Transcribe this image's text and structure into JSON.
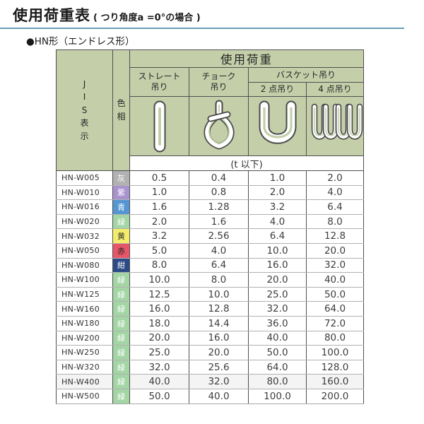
{
  "page": {
    "title": "使用荷重表",
    "title_note": "( つり角度a =0°の場合 )",
    "subtitle": "●HN形（エンドレス形）",
    "accent_line_color": "#6b9fb5"
  },
  "table": {
    "header": {
      "load_title": "使用荷重",
      "jis_label": "J\nI\nS\n表\n示",
      "color_label": "色\n相",
      "straight": "ストレート\n吊り",
      "choke": "チョーク\n吊り",
      "basket": "バスケット吊り",
      "basket2": "2 点吊り",
      "basket4": "4 点吊り",
      "unit_note": "(t 以下)"
    },
    "icons": {
      "straight": "straight-sling-icon",
      "choke": "choke-sling-icon",
      "basket2": "basket-2point-icon",
      "basket4": "basket-4point-icon"
    },
    "colors": {
      "header_bg": "#c4cfaa",
      "border_dark": "#4f4f4f",
      "border_light": "#b1b1b1"
    },
    "rows": [
      {
        "jis": "HN-W005",
        "color_name": "灰",
        "color_hex": "#b2b2b2",
        "color_text": "#ffffff",
        "values": [
          "0.5",
          "0.4",
          "1.0",
          "2.0"
        ]
      },
      {
        "jis": "HN-W010",
        "color_name": "紫",
        "color_hex": "#aa92ce",
        "color_text": "#ffffff",
        "values": [
          "1.0",
          "0.8",
          "2.0",
          "4.0"
        ]
      },
      {
        "jis": "HN-W016",
        "color_name": "青",
        "color_hex": "#5495d2",
        "color_text": "#ffffff",
        "values": [
          "1.6",
          "1.28",
          "3.2",
          "6.4"
        ]
      },
      {
        "jis": "HN-W020",
        "color_name": "緑",
        "color_hex": "#a3d5a5",
        "color_text": "#ffffff",
        "values": [
          "2.0",
          "1.6",
          "4.0",
          "8.0"
        ]
      },
      {
        "jis": "HN-W032",
        "color_name": "黄",
        "color_hex": "#f4ed6b",
        "color_text": "#333333",
        "values": [
          "3.2",
          "2.56",
          "6.4",
          "12.8"
        ]
      },
      {
        "jis": "HN-W050",
        "color_name": "赤",
        "color_hex": "#e65668",
        "color_text": "#222222",
        "values": [
          "5.0",
          "4.0",
          "10.0",
          "20.0"
        ]
      },
      {
        "jis": "HN-W080",
        "color_name": "紺",
        "color_hex": "#2c4a85",
        "color_text": "#ffffff",
        "values": [
          "8.0",
          "6.4",
          "16.0",
          "32.0"
        ]
      },
      {
        "jis": "HN-W100",
        "color_name": "緑",
        "color_hex": "#a3d5a5",
        "color_text": "#ffffff",
        "values": [
          "10.0",
          "8.0",
          "20.0",
          "40.0"
        ]
      },
      {
        "jis": "HN-W125",
        "color_name": "緑",
        "color_hex": "#a3d5a5",
        "color_text": "#ffffff",
        "values": [
          "12.5",
          "10.0",
          "25.0",
          "50.0"
        ]
      },
      {
        "jis": "HN-W160",
        "color_name": "緑",
        "color_hex": "#a3d5a5",
        "color_text": "#ffffff",
        "values": [
          "16.0",
          "12.8",
          "32.0",
          "64.0"
        ]
      },
      {
        "jis": "HN-W180",
        "color_name": "緑",
        "color_hex": "#a3d5a5",
        "color_text": "#ffffff",
        "values": [
          "18.0",
          "14.4",
          "36.0",
          "72.0"
        ]
      },
      {
        "jis": "HN-W200",
        "color_name": "緑",
        "color_hex": "#a3d5a5",
        "color_text": "#ffffff",
        "values": [
          "20.0",
          "16.0",
          "40.0",
          "80.0"
        ]
      },
      {
        "jis": "HN-W250",
        "color_name": "緑",
        "color_hex": "#a3d5a5",
        "color_text": "#ffffff",
        "values": [
          "25.0",
          "20.0",
          "50.0",
          "100.0"
        ]
      },
      {
        "jis": "HN-W320",
        "color_name": "緑",
        "color_hex": "#a3d5a5",
        "color_text": "#ffffff",
        "values": [
          "32.0",
          "25.6",
          "64.0",
          "128.0"
        ]
      },
      {
        "jis": "HN-W400",
        "color_name": "緑",
        "color_hex": "#a3d5a5",
        "color_text": "#ffffff",
        "row_bg": "#f4f4f4",
        "values": [
          "40.0",
          "32.0",
          "80.0",
          "160.0"
        ]
      },
      {
        "jis": "HN-W500",
        "color_name": "緑",
        "color_hex": "#a3d5a5",
        "color_text": "#ffffff",
        "values": [
          "50.0",
          "40.0",
          "100.0",
          "200.0"
        ]
      }
    ]
  }
}
